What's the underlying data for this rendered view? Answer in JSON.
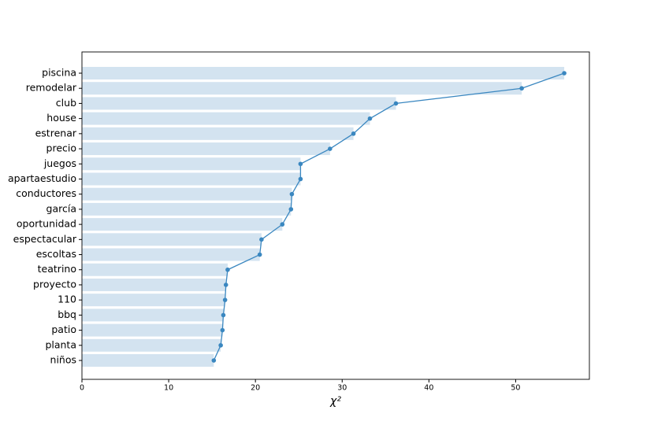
{
  "chart_data": {
    "type": "barh_line",
    "xlabel": "χ²",
    "categories": [
      "piscina",
      "remodelar",
      "club",
      "house",
      "estrenar",
      "precio",
      "juegos",
      "apartaestudio",
      "conductores",
      "garcía",
      "oportunidad",
      "espectacular",
      "escoltas",
      "teatrino",
      "proyecto",
      "110",
      "bbq",
      "patio",
      "planta",
      "niños"
    ],
    "values": [
      55.6,
      50.7,
      36.2,
      33.2,
      31.3,
      28.6,
      25.2,
      25.2,
      24.2,
      24.1,
      23.1,
      20.7,
      20.5,
      16.8,
      16.6,
      16.5,
      16.3,
      16.2,
      16.0,
      15.2
    ],
    "bar_color": "#d3e3f0",
    "line_color": "#3a87c0",
    "xlim": [
      0,
      58.5
    ],
    "xticks": [
      0,
      10,
      20,
      30,
      40,
      50
    ]
  }
}
